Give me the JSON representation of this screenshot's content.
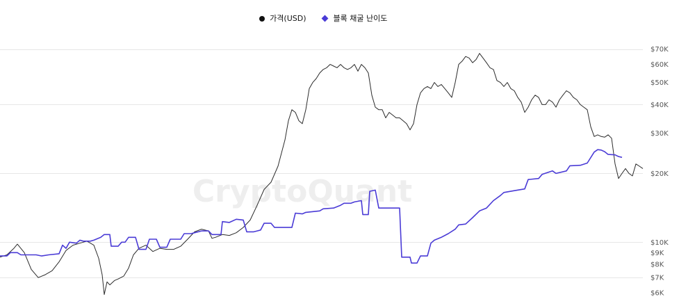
{
  "watermark": "CryptoQuant",
  "legend": {
    "price_label": "가격(USD)",
    "difficulty_label": "블록 채굴 난이도"
  },
  "colors": {
    "price": "#2b2b2b",
    "difficulty": "#4a3bd6",
    "grid": "#e6e6e6",
    "axis_text": "#555555",
    "watermark": "#eeeeee"
  },
  "chart_data": {
    "type": "line",
    "title": "",
    "xlabel": "",
    "ylabel": "",
    "y_scale": "log",
    "ylim": [
      5800,
      82000
    ],
    "y_ticks": [
      {
        "value": 70000,
        "label": "$70K"
      },
      {
        "value": 60000,
        "label": "$60K"
      },
      {
        "value": 50000,
        "label": "$50K"
      },
      {
        "value": 40000,
        "label": "$40K"
      },
      {
        "value": 30000,
        "label": "$30K"
      },
      {
        "value": 20000,
        "label": "$20K"
      },
      {
        "value": 10000,
        "label": "$10K"
      },
      {
        "value": 9000,
        "label": "$9K"
      },
      {
        "value": 8000,
        "label": "$8K"
      },
      {
        "value": 7000,
        "label": "$7K"
      },
      {
        "value": 6000,
        "label": "$6K"
      }
    ],
    "legend_position": "top-center",
    "grid": true,
    "series": [
      {
        "name": "가격(USD)",
        "color": "#2b2b2b",
        "points": [
          [
            0,
            8600
          ],
          [
            10,
            8800
          ],
          [
            20,
            9400
          ],
          [
            25,
            9800
          ],
          [
            35,
            9000
          ],
          [
            45,
            7600
          ],
          [
            55,
            7000
          ],
          [
            65,
            7200
          ],
          [
            75,
            7500
          ],
          [
            85,
            8200
          ],
          [
            95,
            9200
          ],
          [
            105,
            9700
          ],
          [
            115,
            9900
          ],
          [
            125,
            10100
          ],
          [
            135,
            9700
          ],
          [
            142,
            8500
          ],
          [
            147,
            7200
          ],
          [
            150,
            5900
          ],
          [
            154,
            6700
          ],
          [
            158,
            6500
          ],
          [
            165,
            6800
          ],
          [
            170,
            6900
          ],
          [
            178,
            7100
          ],
          [
            185,
            7700
          ],
          [
            192,
            8800
          ],
          [
            200,
            9400
          ],
          [
            210,
            9700
          ],
          [
            220,
            9100
          ],
          [
            230,
            9400
          ],
          [
            240,
            9300
          ],
          [
            250,
            9300
          ],
          [
            260,
            9600
          ],
          [
            270,
            10300
          ],
          [
            280,
            11100
          ],
          [
            290,
            11400
          ],
          [
            300,
            11200
          ],
          [
            305,
            10400
          ],
          [
            310,
            10500
          ],
          [
            320,
            10800
          ],
          [
            330,
            10700
          ],
          [
            340,
            11000
          ],
          [
            350,
            11600
          ],
          [
            360,
            12500
          ],
          [
            370,
            14500
          ],
          [
            380,
            17000
          ],
          [
            390,
            18300
          ],
          [
            400,
            21500
          ],
          [
            410,
            28000
          ],
          [
            415,
            34000
          ],
          [
            420,
            38000
          ],
          [
            425,
            37000
          ],
          [
            430,
            34000
          ],
          [
            435,
            33000
          ],
          [
            440,
            38000
          ],
          [
            445,
            47000
          ],
          [
            450,
            50000
          ],
          [
            455,
            52000
          ],
          [
            460,
            55000
          ],
          [
            465,
            57000
          ],
          [
            470,
            58000
          ],
          [
            475,
            60000
          ],
          [
            480,
            59000
          ],
          [
            485,
            58000
          ],
          [
            490,
            60000
          ],
          [
            495,
            58000
          ],
          [
            500,
            57000
          ],
          [
            505,
            58000
          ],
          [
            510,
            60000
          ],
          [
            515,
            56000
          ],
          [
            520,
            60000
          ],
          [
            525,
            58000
          ],
          [
            530,
            55000
          ],
          [
            535,
            44000
          ],
          [
            540,
            39000
          ],
          [
            545,
            38000
          ],
          [
            550,
            38000
          ],
          [
            555,
            35000
          ],
          [
            560,
            37000
          ],
          [
            565,
            36000
          ],
          [
            570,
            35000
          ],
          [
            575,
            35000
          ],
          [
            580,
            34000
          ],
          [
            585,
            33000
          ],
          [
            590,
            31000
          ],
          [
            595,
            33000
          ],
          [
            600,
            40000
          ],
          [
            605,
            45000
          ],
          [
            610,
            47000
          ],
          [
            615,
            48000
          ],
          [
            620,
            47000
          ],
          [
            625,
            50000
          ],
          [
            630,
            48000
          ],
          [
            635,
            49000
          ],
          [
            640,
            47000
          ],
          [
            645,
            45000
          ],
          [
            650,
            43000
          ],
          [
            655,
            50000
          ],
          [
            660,
            60000
          ],
          [
            665,
            62000
          ],
          [
            670,
            65000
          ],
          [
            675,
            64000
          ],
          [
            680,
            61000
          ],
          [
            685,
            63000
          ],
          [
            690,
            67000
          ],
          [
            695,
            64000
          ],
          [
            700,
            61000
          ],
          [
            705,
            58000
          ],
          [
            710,
            57000
          ],
          [
            715,
            51000
          ],
          [
            720,
            50000
          ],
          [
            725,
            48000
          ],
          [
            730,
            50000
          ],
          [
            735,
            47000
          ],
          [
            740,
            46000
          ],
          [
            745,
            43000
          ],
          [
            750,
            41000
          ],
          [
            755,
            37000
          ],
          [
            760,
            39000
          ],
          [
            765,
            42000
          ],
          [
            770,
            44000
          ],
          [
            775,
            43000
          ],
          [
            780,
            40000
          ],
          [
            785,
            40000
          ],
          [
            790,
            42000
          ],
          [
            795,
            41000
          ],
          [
            800,
            39000
          ],
          [
            805,
            42000
          ],
          [
            810,
            44000
          ],
          [
            815,
            46000
          ],
          [
            820,
            45000
          ],
          [
            825,
            43000
          ],
          [
            830,
            42000
          ],
          [
            835,
            40000
          ],
          [
            840,
            39000
          ],
          [
            845,
            38000
          ],
          [
            850,
            32000
          ],
          [
            855,
            29000
          ],
          [
            860,
            29500
          ],
          [
            865,
            29000
          ],
          [
            870,
            28800
          ],
          [
            875,
            29500
          ],
          [
            880,
            28500
          ],
          [
            885,
            22000
          ],
          [
            890,
            19000
          ],
          [
            895,
            20000
          ],
          [
            900,
            21000
          ],
          [
            905,
            20000
          ],
          [
            910,
            19500
          ],
          [
            915,
            22000
          ],
          [
            920,
            21500
          ],
          [
            925,
            21000
          ]
        ]
      },
      {
        "name": "블록 채굴 난이도",
        "color": "#4a3bd6",
        "points": [
          [
            0,
            8700
          ],
          [
            10,
            8700
          ],
          [
            15,
            9000
          ],
          [
            25,
            9000
          ],
          [
            30,
            8800
          ],
          [
            45,
            8800
          ],
          [
            52,
            8800
          ],
          [
            60,
            8700
          ],
          [
            70,
            8800
          ],
          [
            85,
            8900
          ],
          [
            90,
            9700
          ],
          [
            95,
            9400
          ],
          [
            100,
            10000
          ],
          [
            110,
            9900
          ],
          [
            115,
            10200
          ],
          [
            120,
            10100
          ],
          [
            130,
            10100
          ],
          [
            135,
            10200
          ],
          [
            145,
            10500
          ],
          [
            150,
            10800
          ],
          [
            158,
            10800
          ],
          [
            160,
            9600
          ],
          [
            170,
            9600
          ],
          [
            175,
            10000
          ],
          [
            180,
            10000
          ],
          [
            185,
            10500
          ],
          [
            195,
            10500
          ],
          [
            200,
            9300
          ],
          [
            210,
            9300
          ],
          [
            215,
            10300
          ],
          [
            225,
            10300
          ],
          [
            230,
            9500
          ],
          [
            240,
            9500
          ],
          [
            245,
            10300
          ],
          [
            260,
            10300
          ],
          [
            265,
            10900
          ],
          [
            275,
            10900
          ],
          [
            280,
            11000
          ],
          [
            290,
            11200
          ],
          [
            300,
            11200
          ],
          [
            305,
            10800
          ],
          [
            318,
            10800
          ],
          [
            320,
            12300
          ],
          [
            330,
            12200
          ],
          [
            340,
            12600
          ],
          [
            350,
            12500
          ],
          [
            355,
            11100
          ],
          [
            365,
            11100
          ],
          [
            370,
            11200
          ],
          [
            375,
            11300
          ],
          [
            380,
            12100
          ],
          [
            390,
            12100
          ],
          [
            395,
            11600
          ],
          [
            420,
            11600
          ],
          [
            425,
            13400
          ],
          [
            435,
            13300
          ],
          [
            440,
            13500
          ],
          [
            460,
            13700
          ],
          [
            465,
            14000
          ],
          [
            480,
            14100
          ],
          [
            485,
            14300
          ],
          [
            490,
            14500
          ],
          [
            495,
            14800
          ],
          [
            505,
            14800
          ],
          [
            510,
            15000
          ],
          [
            520,
            15200
          ],
          [
            522,
            13200
          ],
          [
            530,
            13200
          ],
          [
            532,
            16700
          ],
          [
            540,
            16900
          ],
          [
            545,
            14100
          ],
          [
            575,
            14100
          ],
          [
            578,
            8600
          ],
          [
            590,
            8600
          ],
          [
            592,
            8100
          ],
          [
            600,
            8100
          ],
          [
            605,
            8700
          ],
          [
            615,
            8700
          ],
          [
            620,
            9900
          ],
          [
            625,
            10200
          ],
          [
            635,
            10500
          ],
          [
            645,
            10900
          ],
          [
            655,
            11400
          ],
          [
            660,
            11900
          ],
          [
            670,
            12000
          ],
          [
            680,
            12800
          ],
          [
            690,
            13700
          ],
          [
            700,
            14100
          ],
          [
            710,
            15200
          ],
          [
            720,
            16000
          ],
          [
            725,
            16500
          ],
          [
            740,
            16800
          ],
          [
            755,
            17100
          ],
          [
            760,
            18800
          ],
          [
            775,
            19000
          ],
          [
            780,
            19800
          ],
          [
            795,
            20500
          ],
          [
            800,
            20000
          ],
          [
            815,
            20500
          ],
          [
            820,
            21600
          ],
          [
            835,
            21700
          ],
          [
            845,
            22200
          ],
          [
            855,
            24800
          ],
          [
            860,
            25400
          ],
          [
            865,
            25300
          ],
          [
            870,
            24900
          ],
          [
            875,
            24200
          ],
          [
            885,
            24100
          ],
          [
            890,
            23700
          ],
          [
            895,
            23500
          ]
        ]
      }
    ]
  }
}
